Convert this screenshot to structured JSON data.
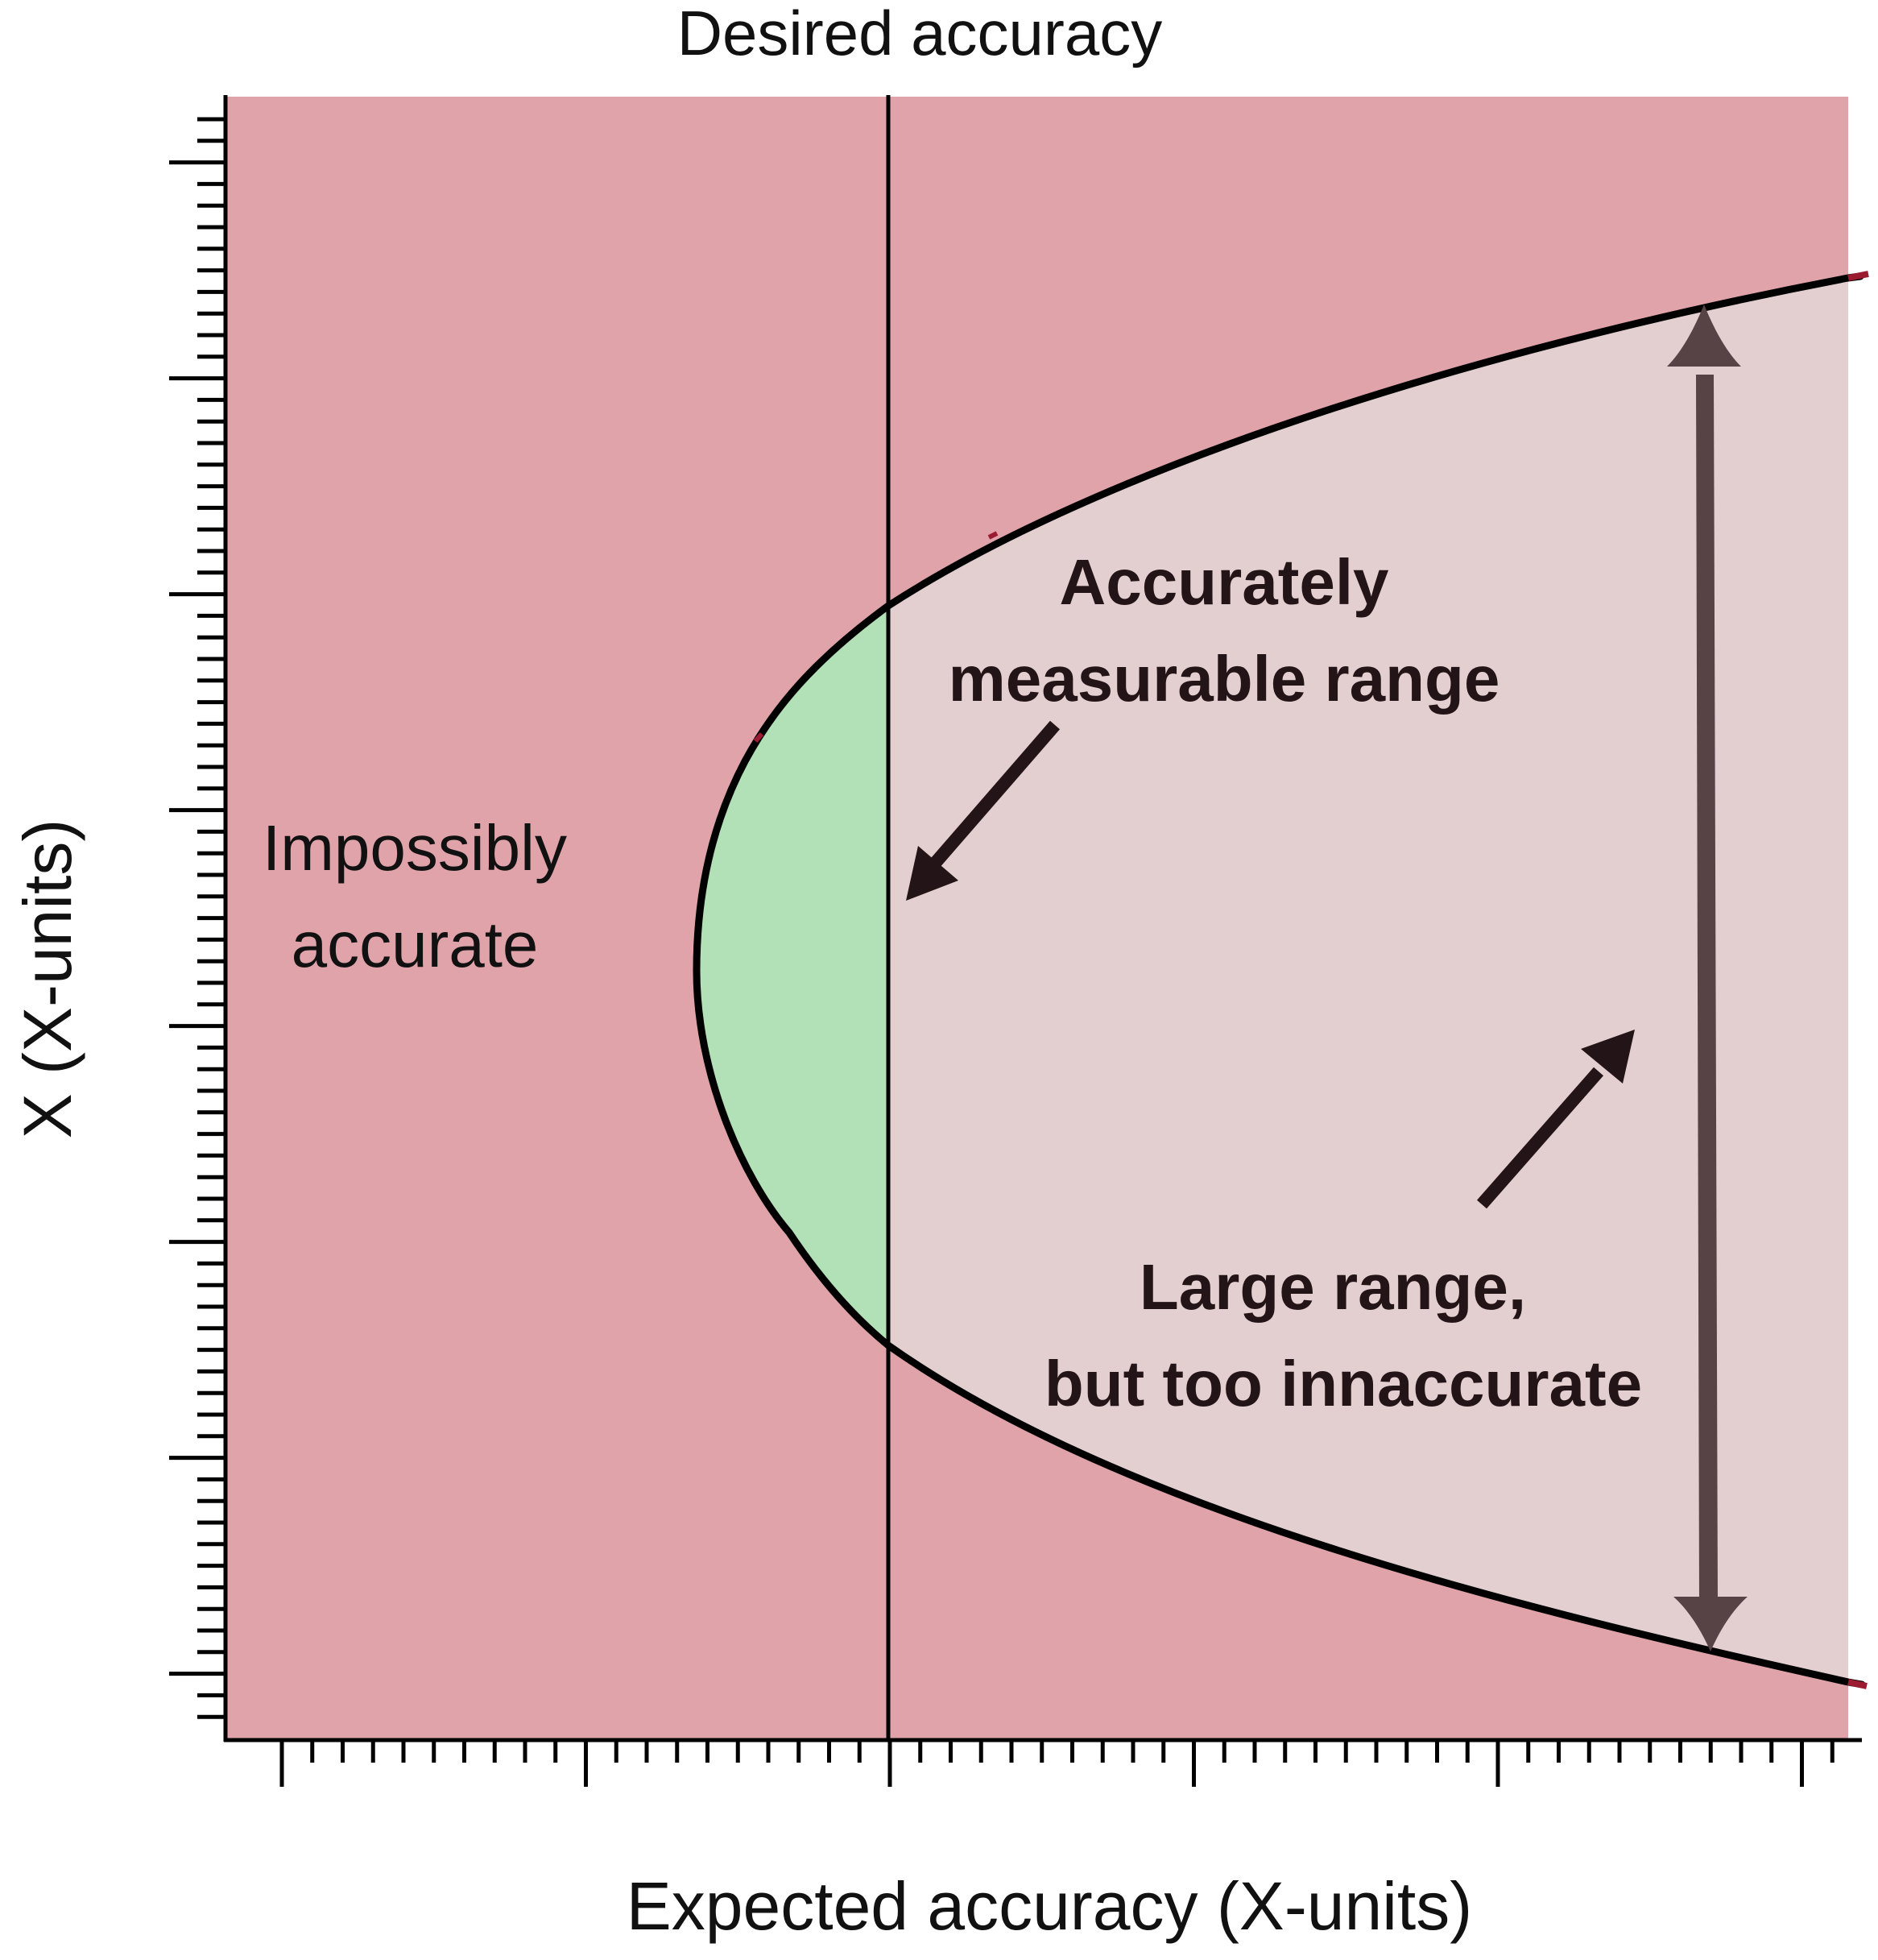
{
  "figure": {
    "top_label": "Desired accuracy",
    "x_axis_label": "Expected accuracy (X-units)",
    "y_axis_label": "X (X-units)"
  },
  "regions": {
    "impossible": {
      "label_line1": "Impossibly",
      "label_line2": "accurate",
      "color": "#e0a3a9"
    },
    "measurable": {
      "label_line1": "Accurately",
      "label_line2": "measurable range",
      "color": "#b2e0b7"
    },
    "inaccurate": {
      "label_line1": "Large range,",
      "label_line2": "but too innaccurate",
      "color": "#e4cfd0"
    }
  },
  "colors": {
    "arrow": "#231417",
    "double_arrow": "#574245",
    "curve": "#000000",
    "tick_accent": "#9b1b30"
  }
}
